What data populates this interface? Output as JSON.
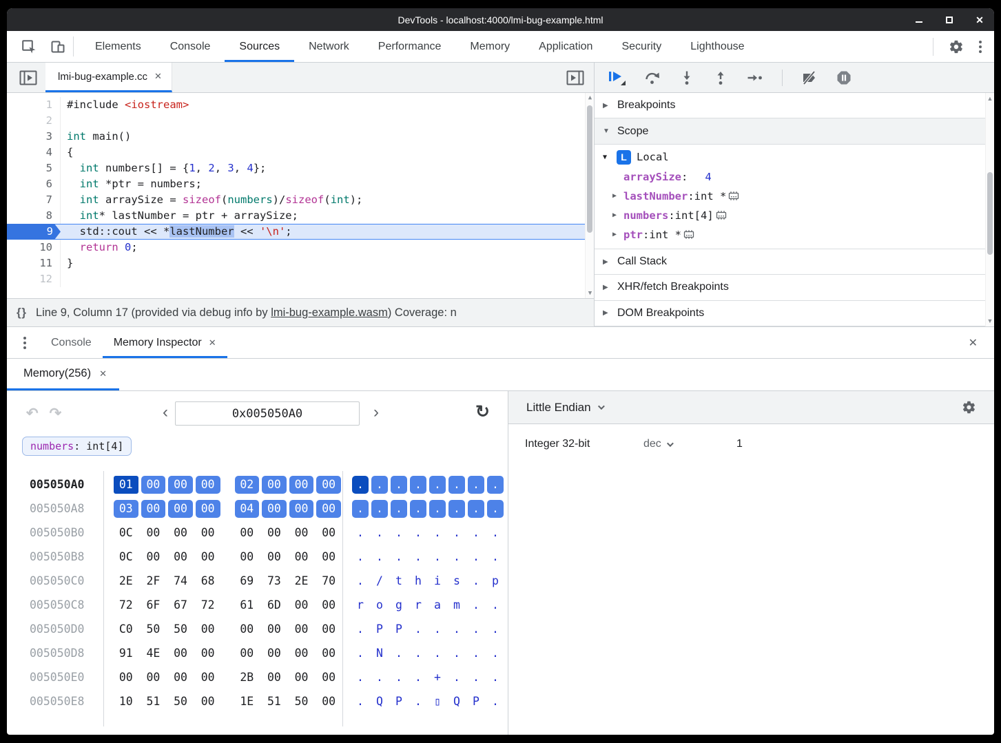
{
  "window": {
    "title": "DevTools - localhost:4000/lmi-bug-example.html"
  },
  "icons": {
    "close": "✕",
    "undo": "↶",
    "redo": "↷",
    "refresh": "↻",
    "prev": "‹",
    "next": "›",
    "collapsed": "▶",
    "expanded": "▼",
    "scroll_up": "▲",
    "scroll_down": "▼",
    "pretty_print": "{ }"
  },
  "top_tabs": [
    {
      "label": "Elements"
    },
    {
      "label": "Console"
    },
    {
      "label": "Sources",
      "active": true
    },
    {
      "label": "Network"
    },
    {
      "label": "Performance"
    },
    {
      "label": "Memory"
    },
    {
      "label": "Application"
    },
    {
      "label": "Security"
    },
    {
      "label": "Lighthouse"
    }
  ],
  "source_panel": {
    "file_tab": {
      "label": "lmi-bug-example.cc"
    },
    "editor": {
      "lines": [
        {
          "n": "1",
          "dim": true,
          "segs": [
            [
              "p",
              "#include "
            ],
            [
              "str",
              "<iostream>"
            ]
          ]
        },
        {
          "n": "2",
          "dim": true,
          "segs": []
        },
        {
          "n": "3",
          "segs": [
            [
              "kw",
              "int"
            ],
            [
              "p",
              " main()"
            ]
          ]
        },
        {
          "n": "4",
          "segs": [
            [
              "p",
              "{"
            ]
          ]
        },
        {
          "n": "5",
          "segs": [
            [
              "p",
              "  "
            ],
            [
              "kw",
              "int"
            ],
            [
              "p",
              " numbers[] = {"
            ],
            [
              "num",
              "1"
            ],
            [
              "p",
              ", "
            ],
            [
              "num",
              "2"
            ],
            [
              "p",
              ", "
            ],
            [
              "num",
              "3"
            ],
            [
              "p",
              ", "
            ],
            [
              "num",
              "4"
            ],
            [
              "p",
              "};"
            ]
          ]
        },
        {
          "n": "6",
          "segs": [
            [
              "p",
              "  "
            ],
            [
              "kw",
              "int"
            ],
            [
              "p",
              " *ptr = numbers;"
            ]
          ]
        },
        {
          "n": "7",
          "segs": [
            [
              "p",
              "  "
            ],
            [
              "kw",
              "int"
            ],
            [
              "p",
              " arraySize = "
            ],
            [
              "mag",
              "sizeof"
            ],
            [
              "p",
              "("
            ],
            [
              "kw",
              "numbers"
            ],
            [
              "p",
              ")/"
            ],
            [
              "mag",
              "sizeof"
            ],
            [
              "p",
              "("
            ],
            [
              "kw",
              "int"
            ],
            [
              "p",
              ");"
            ]
          ]
        },
        {
          "n": "8",
          "segs": [
            [
              "p",
              "  "
            ],
            [
              "kw",
              "int"
            ],
            [
              "p",
              "* lastNumber = ptr + arraySize;"
            ]
          ]
        },
        {
          "n": "9",
          "exec": true,
          "segs": [
            [
              "p",
              "  std::cout << *"
            ],
            [
              "sel",
              "lastNumber"
            ],
            [
              "p",
              " << "
            ],
            [
              "str",
              "'\\n'"
            ],
            [
              "p",
              ";"
            ]
          ]
        },
        {
          "n": "10",
          "segs": [
            [
              "p",
              "  "
            ],
            [
              "mag",
              "return"
            ],
            [
              "p",
              " "
            ],
            [
              "num",
              "0"
            ],
            [
              "p",
              ";"
            ]
          ]
        },
        {
          "n": "11",
          "segs": [
            [
              "p",
              "}"
            ]
          ]
        },
        {
          "n": "12",
          "dim": true,
          "segs": []
        }
      ]
    },
    "status": {
      "prefix": "Line 9, Column 17  (provided via debug info by ",
      "link": "lmi-bug-example.wasm",
      "suffix": ")  Coverage: n"
    }
  },
  "debug_sidebar": {
    "sections": {
      "breakpoints": "Breakpoints",
      "scope": "Scope",
      "call_stack": "Call Stack",
      "xhr": "XHR/fetch Breakpoints",
      "dom": "DOM Breakpoints"
    },
    "scope": {
      "badge": "L",
      "name": "Local",
      "vars": [
        {
          "name": "arraySize",
          "value": "4"
        },
        {
          "name": "lastNumber",
          "type": "int *",
          "expandable": true,
          "mem": true
        },
        {
          "name": "numbers",
          "type": "int[4]",
          "expandable": true,
          "mem": true
        },
        {
          "name": "ptr",
          "type": "int *",
          "expandable": true,
          "mem": true
        }
      ]
    }
  },
  "drawer": {
    "tabs": [
      {
        "label": "Console"
      },
      {
        "label": "Memory Inspector",
        "active": true,
        "closable": true
      }
    ],
    "memory_tab": "Memory(256)",
    "inspector": {
      "address": "0x005050A0",
      "tag": {
        "name": "numbers",
        "rest": ": int[4]"
      },
      "rows": [
        {
          "addr": "005050A0",
          "bold": true,
          "hl": true,
          "sel": 0,
          "bytes": [
            "01",
            "00",
            "00",
            "00",
            "02",
            "00",
            "00",
            "00"
          ],
          "ascii": [
            ".",
            ".",
            ".",
            ".",
            ".",
            ".",
            ".",
            "."
          ]
        },
        {
          "addr": "005050A8",
          "hl": true,
          "bytes": [
            "03",
            "00",
            "00",
            "00",
            "04",
            "00",
            "00",
            "00"
          ],
          "ascii": [
            ".",
            ".",
            ".",
            ".",
            ".",
            ".",
            ".",
            "."
          ]
        },
        {
          "addr": "005050B0",
          "bytes": [
            "0C",
            "00",
            "00",
            "00",
            "00",
            "00",
            "00",
            "00"
          ],
          "ascii": [
            ".",
            ".",
            ".",
            ".",
            ".",
            ".",
            ".",
            "."
          ]
        },
        {
          "addr": "005050B8",
          "bytes": [
            "0C",
            "00",
            "00",
            "00",
            "00",
            "00",
            "00",
            "00"
          ],
          "ascii": [
            ".",
            ".",
            ".",
            ".",
            ".",
            ".",
            ".",
            "."
          ]
        },
        {
          "addr": "005050C0",
          "bytes": [
            "2E",
            "2F",
            "74",
            "68",
            "69",
            "73",
            "2E",
            "70"
          ],
          "ascii": [
            ".",
            "/",
            "t",
            "h",
            "i",
            "s",
            ".",
            "p"
          ]
        },
        {
          "addr": "005050C8",
          "bytes": [
            "72",
            "6F",
            "67",
            "72",
            "61",
            "6D",
            "00",
            "00"
          ],
          "ascii": [
            "r",
            "o",
            "g",
            "r",
            "a",
            "m",
            ".",
            "."
          ]
        },
        {
          "addr": "005050D0",
          "bytes": [
            "C0",
            "50",
            "50",
            "00",
            "00",
            "00",
            "00",
            "00"
          ],
          "ascii": [
            ".",
            "P",
            "P",
            ".",
            ".",
            ".",
            ".",
            "."
          ]
        },
        {
          "addr": "005050D8",
          "bytes": [
            "91",
            "4E",
            "00",
            "00",
            "00",
            "00",
            "00",
            "00"
          ],
          "ascii": [
            ".",
            "N",
            ".",
            ".",
            ".",
            ".",
            ".",
            "."
          ]
        },
        {
          "addr": "005050E0",
          "bytes": [
            "00",
            "00",
            "00",
            "00",
            "2B",
            "00",
            "00",
            "00"
          ],
          "ascii": [
            ".",
            ".",
            ".",
            ".",
            "+",
            ".",
            ".",
            "."
          ]
        },
        {
          "addr": "005050E8",
          "bytes": [
            "10",
            "51",
            "50",
            "00",
            "1E",
            "51",
            "50",
            "00"
          ],
          "ascii": [
            ".",
            "Q",
            "P",
            ".",
            "▯",
            "Q",
            "P",
            "."
          ]
        }
      ],
      "value_panel": {
        "endianness": "Little Endian",
        "type": "Integer 32-bit",
        "format": "dec",
        "value": "1"
      }
    }
  },
  "colors": {
    "accent": "#1a73e8",
    "byte_highlight": "#4d82e8",
    "byte_selected": "#0b4dbe",
    "keyword": "#00796b",
    "string": "#c8231c",
    "number": "#2430cc",
    "keyword2": "#b23394",
    "scope_var": "#a44fbb",
    "exec_line_bg": "#dde8fb",
    "titlebar_bg": "#28292c"
  }
}
